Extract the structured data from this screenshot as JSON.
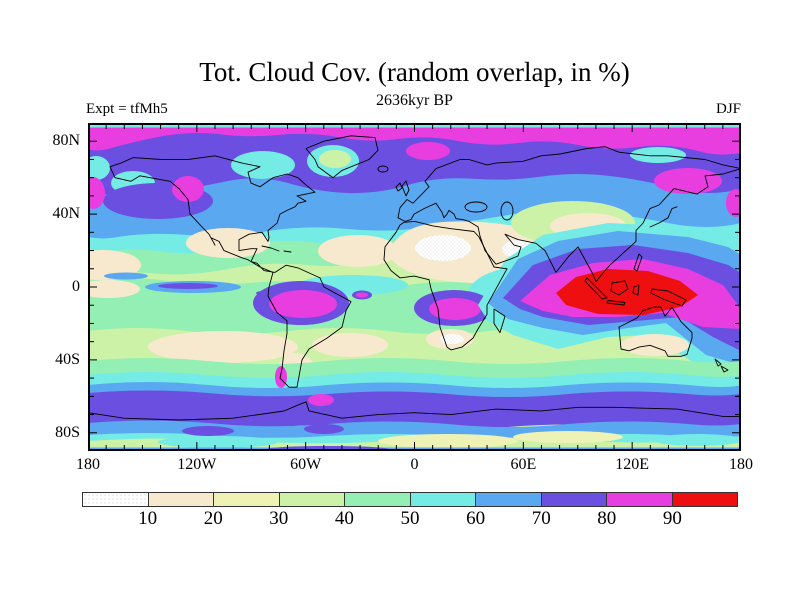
{
  "title": "Tot. Cloud Cov. (random overlap, in %)",
  "subtitle": "2636kyr BP",
  "experiment_label": "Expt = tfMh5",
  "season_label": "DJF",
  "axes": {
    "x_tick_labels": [
      "180",
      "120W",
      "60W",
      "0",
      "60E",
      "120E",
      "180"
    ],
    "x_tick_lons": [
      -180,
      -120,
      -60,
      0,
      60,
      120,
      180
    ],
    "y_tick_labels": [
      "80N",
      "40N",
      "0",
      "40S",
      "80S"
    ],
    "y_tick_lats": [
      80,
      40,
      0,
      -40,
      -80
    ],
    "x_range_deg": [
      -180,
      180
    ],
    "y_range_deg": [
      -90,
      90
    ],
    "minor_tick_interval_deg": 10
  },
  "colorbar": {
    "tick_labels": [
      "10",
      "20",
      "30",
      "40",
      "50",
      "60",
      "70",
      "80",
      "90"
    ],
    "levels_pct": [
      10,
      20,
      30,
      40,
      50,
      60,
      70,
      80,
      90
    ],
    "units": "%",
    "colors": [
      "#FFFFFF",
      "#F7E9CE",
      "#EFF2B5",
      "#CBF2A6",
      "#93EFB4",
      "#75EBE6",
      "#5AA8F0",
      "#6A4FE0",
      "#E83EE0",
      "#EE1010"
    ]
  },
  "chart_data": {
    "type": "filled-contour-map",
    "variable": "Total cloud cover (random overlap)",
    "units": "%",
    "experiment": "tfMh5",
    "time": "2636 kyr BP",
    "season": "DJF",
    "projection": "equirectangular, global (180W-180E, 90S-90N)",
    "contour_levels": [
      10,
      20,
      30,
      40,
      50,
      60,
      70,
      80,
      90
    ],
    "palette": [
      "#FFFFFF",
      "#F7E9CE",
      "#EFF2B5",
      "#CBF2A6",
      "#93EFB4",
      "#75EBE6",
      "#5AA8F0",
      "#6A4FE0",
      "#E83EE0",
      "#EE1010"
    ],
    "legend_position": "horizontal colorbar below map",
    "grid": "tick marks every 10 deg on all four frame sides, coastlines overlaid in black",
    "zonal_mean_estimate": [
      {
        "lat": 88,
        "pct": 55
      },
      {
        "lat": 82,
        "pct": 85
      },
      {
        "lat": 72,
        "pct": 75
      },
      {
        "lat": 60,
        "pct": 65
      },
      {
        "lat": 45,
        "pct": 62
      },
      {
        "lat": 30,
        "pct": 45
      },
      {
        "lat": 20,
        "pct": 30
      },
      {
        "lat": 10,
        "pct": 40
      },
      {
        "lat": 0,
        "pct": 55
      },
      {
        "lat": -5,
        "pct": 65
      },
      {
        "lat": -15,
        "pct": 45
      },
      {
        "lat": -25,
        "pct": 25
      },
      {
        "lat": -35,
        "pct": 35
      },
      {
        "lat": -45,
        "pct": 60
      },
      {
        "lat": -55,
        "pct": 75
      },
      {
        "lat": -65,
        "pct": 70
      },
      {
        "lat": -75,
        "pct": 55
      },
      {
        "lat": -85,
        "pct": 40
      }
    ],
    "notable_features": [
      ">90% red core over the Maritime Continent / Indonesia (~90E-155E, 10N-10S) ringed by 80-90% magenta extending SE along the SPCZ",
      "80-90% magenta band around the Arctic (~75-85N) with a 50-60% cyan strip at the very top edge",
      "70-80% violet subpolar band across North Pacific, North America and Eurasia (~55-75N)",
      "80-90% magenta patches over Gulf of Alaska / British Columbia coast, Scandinavia-Barents and Northeast Asia / Kamchatka",
      "60-70% blue mid-latitude band (~40-55N)",
      "Subtropical minima <10-20% (white/cream, stippled) over Sahara, Arabia, Tibet margin, Mexico, central Pacific, SE Pacific, South Atlantic, southern Africa, central Australia and Patagonia",
      "80-90% magenta blobs just south of the equator over Amazonia, the Congo basin and the SW Indian Ocean east of Madagascar",
      "Narrow 60-80% blue/violet streaks along the equatorial East Pacific",
      "Circumglobal 70-80% violet Southern Ocean storm track (~50-65S) with small magenta spots near southern Patagonia and the Antarctic Peninsula",
      "Antarctic interior mostly 30-60% with 20-30% pale-yellow patches"
    ]
  }
}
